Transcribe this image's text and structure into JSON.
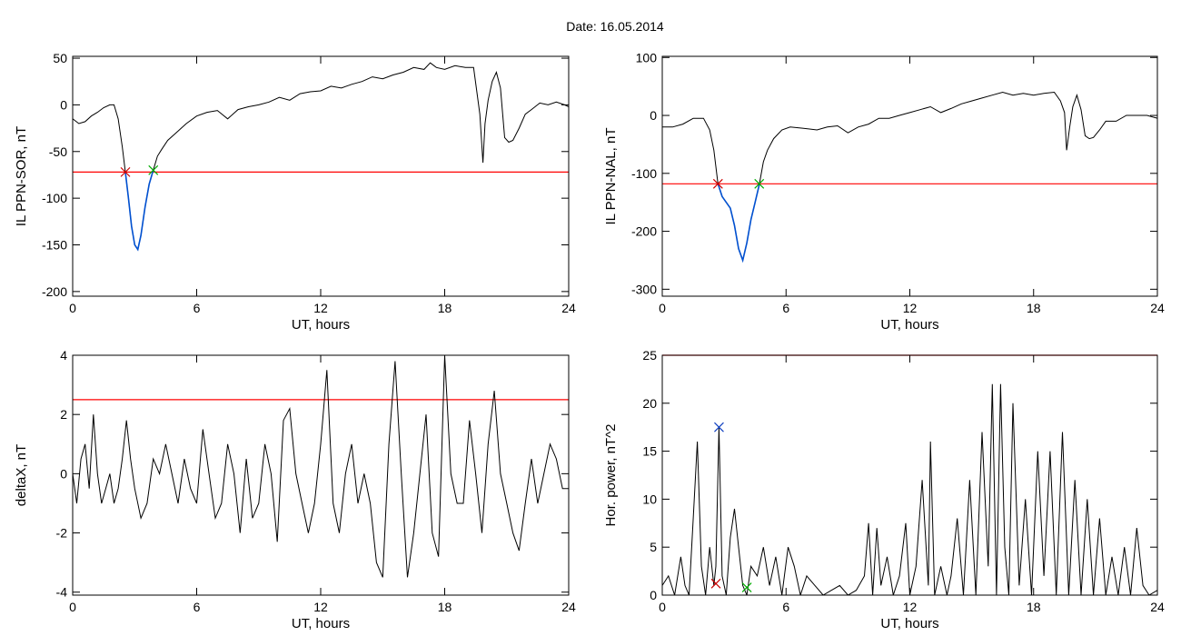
{
  "title": "Date:  16.05.2014",
  "chart_data": [
    {
      "type": "line",
      "xlabel": "UT, hours",
      "ylabel": "IL PPN-SOR, nT",
      "xlim": [
        0,
        24
      ],
      "ylim": [
        -205,
        52
      ],
      "xticks": [
        0,
        6,
        12,
        18,
        24
      ],
      "yticks": [
        50,
        0,
        -50,
        -100,
        -150,
        -200
      ],
      "threshold": -72,
      "threshold_color": "#ff0000",
      "series": [
        {
          "x": [
            0,
            0.3,
            0.6,
            0.9,
            1.2,
            1.5,
            1.8,
            2.0,
            2.2,
            2.4,
            2.55,
            2.7,
            2.85,
            3.0,
            3.15,
            3.3,
            3.5,
            3.7,
            3.9,
            4.1,
            4.3,
            4.6,
            5.0,
            5.5,
            6.0,
            6.5,
            7.0,
            7.5,
            8.0,
            8.5,
            9.0,
            9.5,
            10.0,
            10.5,
            11.0,
            11.5,
            12.0,
            12.5,
            13.0,
            13.5,
            14.0,
            14.5,
            15.0,
            15.5,
            16.0,
            16.5,
            17.0,
            17.3,
            17.6,
            18.0,
            18.5,
            19.0,
            19.4,
            19.7,
            19.85,
            19.95,
            20.1,
            20.3,
            20.5,
            20.7,
            20.9,
            21.1,
            21.3,
            21.6,
            21.9,
            22.2,
            22.6,
            23.0,
            23.4,
            23.8,
            24
          ],
          "y": [
            -15,
            -20,
            -18,
            -12,
            -8,
            -3,
            0,
            0,
            -15,
            -45,
            -72,
            -100,
            -130,
            -150,
            -155,
            -140,
            -110,
            -85,
            -70,
            -55,
            -48,
            -38,
            -30,
            -20,
            -12,
            -8,
            -6,
            -15,
            -5,
            -2,
            0,
            3,
            8,
            5,
            12,
            14,
            15,
            20,
            18,
            22,
            25,
            30,
            28,
            32,
            35,
            40,
            38,
            45,
            40,
            38,
            42,
            40,
            40,
            -10,
            -62,
            -20,
            5,
            25,
            35,
            18,
            -35,
            -40,
            -38,
            -25,
            -10,
            -5,
            2,
            0,
            3,
            0,
            -2
          ],
          "color": "#000000"
        },
        {
          "x": [
            2.55,
            2.7,
            2.85,
            3.0,
            3.15,
            3.3,
            3.5,
            3.7,
            3.9
          ],
          "y": [
            -72,
            -100,
            -130,
            -150,
            -155,
            -140,
            -110,
            -85,
            -70
          ],
          "color": "#0050d0"
        }
      ],
      "markers": [
        {
          "x": 2.55,
          "y": -72,
          "color": "#cc0000"
        },
        {
          "x": 3.9,
          "y": -70,
          "color": "#00aa00"
        }
      ]
    },
    {
      "type": "line",
      "xlabel": "UT, hours",
      "ylabel": "IL PPN-NAL, nT",
      "xlim": [
        0,
        24
      ],
      "ylim": [
        -312,
        102
      ],
      "xticks": [
        0,
        6,
        12,
        18,
        24
      ],
      "yticks": [
        100,
        0,
        -100,
        -200,
        -300
      ],
      "threshold": -118,
      "threshold_color": "#ff0000",
      "series": [
        {
          "x": [
            0,
            0.5,
            1.0,
            1.5,
            2.0,
            2.3,
            2.5,
            2.7,
            2.9,
            3.1,
            3.3,
            3.5,
            3.7,
            3.9,
            4.1,
            4.3,
            4.5,
            4.7,
            4.9,
            5.1,
            5.4,
            5.8,
            6.2,
            6.8,
            7.5,
            8.0,
            8.5,
            9.0,
            9.5,
            10.0,
            10.5,
            11.0,
            11.5,
            12.0,
            12.5,
            13.0,
            13.5,
            14.0,
            14.5,
            15.0,
            15.5,
            16.0,
            16.5,
            17.0,
            17.5,
            18.0,
            18.5,
            19.0,
            19.3,
            19.5,
            19.6,
            19.75,
            19.9,
            20.1,
            20.3,
            20.5,
            20.7,
            20.9,
            21.2,
            21.5,
            22.0,
            22.5,
            23.0,
            23.5,
            24
          ],
          "y": [
            -20,
            -20,
            -15,
            -5,
            -5,
            -25,
            -60,
            -118,
            -140,
            -150,
            -160,
            -190,
            -230,
            -250,
            -220,
            -180,
            -150,
            -120,
            -80,
            -60,
            -40,
            -25,
            -20,
            -22,
            -25,
            -20,
            -18,
            -30,
            -20,
            -15,
            -5,
            -5,
            0,
            5,
            10,
            15,
            5,
            12,
            20,
            25,
            30,
            35,
            40,
            35,
            38,
            35,
            38,
            40,
            25,
            5,
            -60,
            -20,
            15,
            35,
            10,
            -35,
            -40,
            -38,
            -25,
            -10,
            -10,
            0,
            0,
            0,
            -5
          ],
          "color": "#000000"
        },
        {
          "x": [
            2.7,
            2.9,
            3.1,
            3.3,
            3.5,
            3.7,
            3.9,
            4.1,
            4.3,
            4.5,
            4.7
          ],
          "y": [
            -118,
            -140,
            -150,
            -160,
            -190,
            -230,
            -250,
            -220,
            -180,
            -150,
            -120
          ],
          "color": "#0050d0"
        }
      ],
      "markers": [
        {
          "x": 2.7,
          "y": -118,
          "color": "#cc0000"
        },
        {
          "x": 4.7,
          "y": -118,
          "color": "#00aa00"
        }
      ]
    },
    {
      "type": "line",
      "xlabel": "UT, hours",
      "ylabel": "deltaX, nT",
      "xlim": [
        0,
        24
      ],
      "ylim": [
        -4.1,
        4.0
      ],
      "xticks": [
        0,
        6,
        12,
        18,
        24
      ],
      "yticks": [
        4,
        2,
        0,
        -2,
        -4
      ],
      "threshold": 2.5,
      "threshold_color": "#ff0000",
      "series": [
        {
          "x": [
            0,
            0.2,
            0.4,
            0.6,
            0.8,
            1.0,
            1.2,
            1.4,
            1.6,
            1.8,
            2.0,
            2.2,
            2.4,
            2.6,
            2.8,
            3.0,
            3.3,
            3.6,
            3.9,
            4.2,
            4.5,
            4.8,
            5.1,
            5.4,
            5.7,
            6.0,
            6.3,
            6.6,
            6.9,
            7.2,
            7.5,
            7.8,
            8.1,
            8.4,
            8.7,
            9.0,
            9.3,
            9.6,
            9.9,
            10.2,
            10.5,
            10.8,
            11.1,
            11.4,
            11.7,
            12.0,
            12.3,
            12.6,
            12.9,
            13.2,
            13.5,
            13.8,
            14.1,
            14.4,
            14.7,
            15.0,
            15.3,
            15.6,
            15.9,
            16.2,
            16.5,
            16.8,
            17.1,
            17.4,
            17.7,
            18.0,
            18.3,
            18.6,
            18.9,
            19.2,
            19.5,
            19.8,
            20.1,
            20.4,
            20.7,
            21.0,
            21.3,
            21.6,
            21.9,
            22.2,
            22.5,
            22.8,
            23.1,
            23.4,
            23.7,
            24.0
          ],
          "y": [
            0,
            -1,
            0.5,
            1,
            -0.5,
            2,
            0,
            -1,
            -0.5,
            0,
            -1,
            -0.5,
            0.5,
            1.8,
            0.5,
            -0.5,
            -1.5,
            -1,
            0.5,
            0,
            1,
            0,
            -1,
            0.5,
            -0.5,
            -1,
            1.5,
            0,
            -1.5,
            -1,
            1,
            0,
            -2,
            0.5,
            -1.5,
            -1,
            1,
            0,
            -2.3,
            1.8,
            2.2,
            0,
            -1,
            -2,
            -1,
            1,
            3.5,
            -1,
            -2,
            0,
            1,
            -1,
            0,
            -1,
            -3,
            -3.5,
            1,
            3.8,
            0,
            -3.5,
            -2,
            0,
            2,
            -2,
            -2.8,
            4.0,
            0,
            -1,
            -1,
            1.8,
            0,
            -2,
            1,
            2.8,
            0,
            -1,
            -2,
            -2.6,
            -1,
            0.5,
            -1,
            0,
            1,
            0.5,
            -0.5,
            -0.5
          ],
          "color": "#000000"
        }
      ],
      "markers": []
    },
    {
      "type": "line",
      "xlabel": "UT, hours",
      "ylabel": "Hor. power, nT^2",
      "xlim": [
        0,
        24
      ],
      "ylim": [
        0,
        25
      ],
      "xticks": [
        0,
        6,
        12,
        18,
        24
      ],
      "yticks": [
        25,
        20,
        15,
        10,
        5,
        0
      ],
      "threshold": 25,
      "threshold_color": "#ff0000",
      "series": [
        {
          "x": [
            0,
            0.3,
            0.6,
            0.9,
            1.1,
            1.3,
            1.5,
            1.7,
            1.9,
            2.1,
            2.3,
            2.5,
            2.6,
            2.75,
            2.9,
            3.1,
            3.3,
            3.5,
            3.7,
            3.9,
            4.1,
            4.3,
            4.6,
            4.9,
            5.2,
            5.5,
            5.8,
            6.1,
            6.4,
            6.7,
            7.0,
            7.4,
            7.8,
            8.2,
            8.6,
            9.0,
            9.4,
            9.8,
            10.0,
            10.2,
            10.4,
            10.6,
            10.9,
            11.2,
            11.5,
            11.8,
            12.0,
            12.3,
            12.6,
            12.9,
            13.0,
            13.2,
            13.5,
            13.8,
            14.0,
            14.3,
            14.6,
            14.9,
            15.2,
            15.5,
            15.8,
            16.0,
            16.2,
            16.4,
            16.6,
            16.8,
            17.0,
            17.3,
            17.6,
            17.9,
            18.2,
            18.5,
            18.8,
            19.1,
            19.4,
            19.7,
            20.0,
            20.3,
            20.6,
            20.9,
            21.2,
            21.5,
            21.8,
            22.1,
            22.4,
            22.7,
            23.0,
            23.3,
            23.6,
            24.0
          ],
          "y": [
            1,
            2,
            0,
            4,
            1,
            0,
            8,
            16,
            3,
            0,
            5,
            1,
            3,
            17.5,
            2,
            0,
            6,
            9,
            5,
            1,
            0,
            3,
            2,
            5,
            1,
            4,
            0,
            5,
            3,
            0,
            2,
            1,
            0,
            0.5,
            1,
            0,
            0.5,
            2,
            7.5,
            0,
            7,
            1,
            4,
            0,
            2,
            7.5,
            0,
            3,
            12,
            1,
            16,
            0,
            3,
            0,
            2,
            8,
            0,
            12,
            0,
            17,
            3,
            22,
            0,
            22,
            5,
            0,
            20,
            1,
            10,
            0,
            15,
            2,
            15,
            0,
            17,
            0,
            12,
            0,
            10,
            0,
            8,
            0,
            4,
            0,
            5,
            0,
            7,
            1,
            0,
            0.5
          ],
          "color": "#000000"
        }
      ],
      "markers": [
        {
          "x": 2.6,
          "y": 1.2,
          "color": "#cc0000"
        },
        {
          "x": 2.75,
          "y": 17.5,
          "color": "#1040c0"
        },
        {
          "x": 4.1,
          "y": 0.8,
          "color": "#00aa00"
        }
      ]
    }
  ]
}
